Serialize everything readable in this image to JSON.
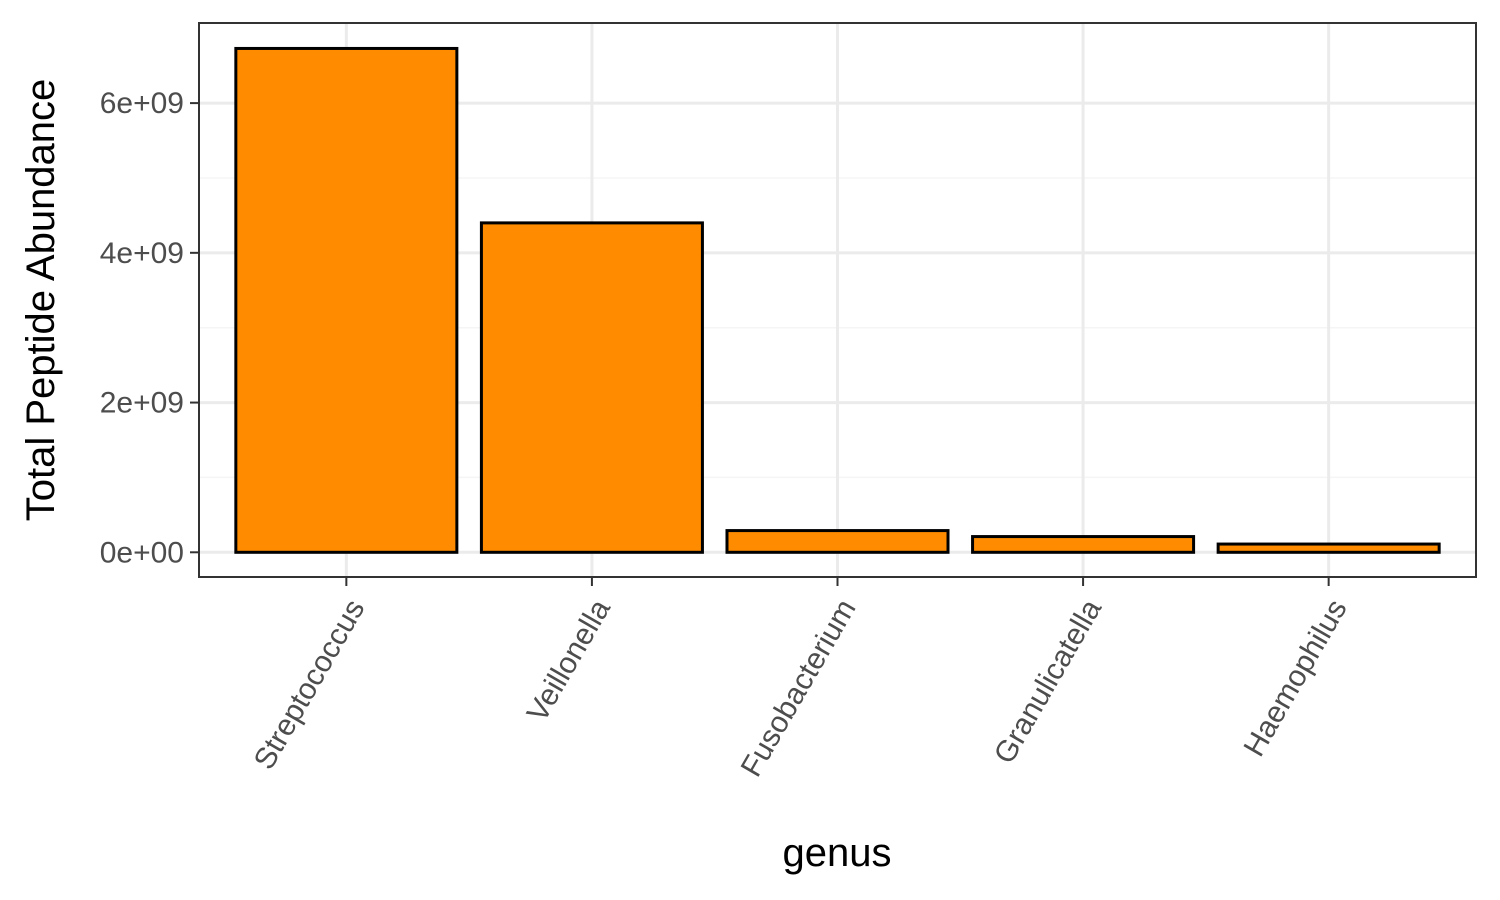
{
  "chart_data": {
    "type": "bar",
    "title": "",
    "xlabel": "genus",
    "ylabel": "Total Peptide Abundance",
    "categories": [
      "Streptococcus",
      "Veillonella",
      "Fusobacterium",
      "Granulicatella",
      "Haemophilus"
    ],
    "values": [
      6730000000,
      4400000000,
      290000000,
      210000000,
      110000000
    ],
    "ylim": [
      -330000000,
      7070000000
    ],
    "yticks": [
      0,
      2000000000,
      4000000000,
      6000000000
    ],
    "ytick_labels": [
      "0e+00",
      "2e+09",
      "4e+09",
      "6e+09"
    ],
    "grid": true,
    "legend": "none",
    "colors": {
      "bar_fill": "#FF8C00",
      "bar_stroke": "#000000",
      "grid_major": "#EBEBEB",
      "grid_minor": "#F5F5F5",
      "panel_border": "#333333",
      "tick_text": "#4D4D4D"
    }
  }
}
